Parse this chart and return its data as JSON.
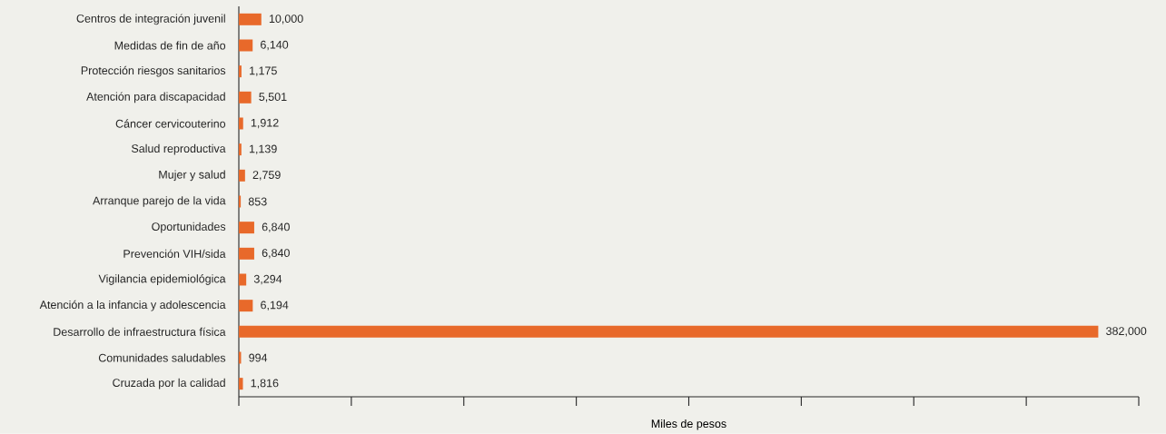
{
  "chart_data": {
    "type": "bar",
    "orientation": "horizontal",
    "xlabel": "Miles de pesos",
    "categories": [
      "Centros de integración juvenil",
      "Medidas de fin de año",
      "Protección riesgos sanitarios",
      "Atención para discapacidad",
      "Cáncer cervicouterino",
      "Salud reproductiva",
      "Mujer y salud",
      "Arranque parejo de la vida",
      "Oportunidades",
      "Prevención VIH/sida",
      "Vigilancia epidemiológica",
      "Atención a la infancia y adolescencia",
      "Desarrollo de infraestructura física",
      "Comunidades saludables",
      "Cruzada por la calidad"
    ],
    "values": [
      10000,
      6140,
      1175,
      5501,
      1912,
      1139,
      2759,
      853,
      6840,
      6840,
      3294,
      6194,
      382000,
      994,
      1816
    ],
    "value_labels": [
      "10,000",
      "6,140",
      "1,175",
      "5,501",
      "1,912",
      "1,139",
      "2,759",
      "853",
      "6,840",
      "6,840",
      "3,294",
      "6,194",
      "382,000",
      "994",
      "1,816"
    ],
    "color": "#e8692a",
    "xlim": [
      0,
      400000
    ],
    "xticks": [
      {
        "value": 0,
        "label": null
      },
      {
        "value": 50000,
        "label": null
      },
      {
        "value": 100000,
        "label": null
      },
      {
        "value": 150000,
        "label": null
      },
      {
        "value": 200000,
        "label": null
      },
      {
        "value": 250000,
        "label": null
      },
      {
        "value": 300000,
        "label": null
      },
      {
        "value": 350000,
        "label": null
      },
      {
        "value": 400000,
        "label": null
      }
    ]
  }
}
